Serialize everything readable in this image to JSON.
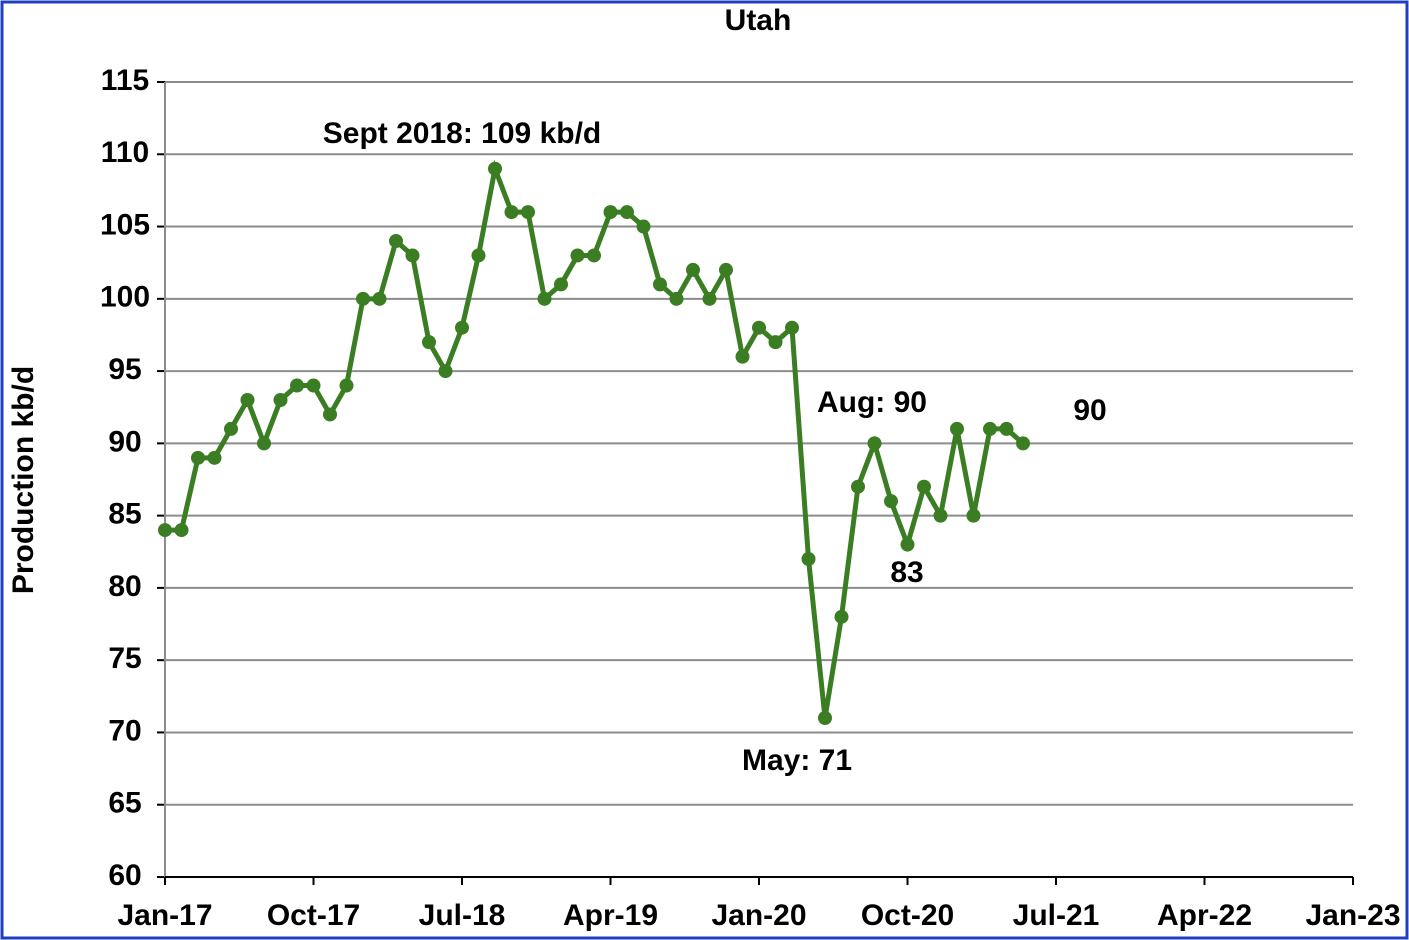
{
  "chart_data": {
    "type": "line",
    "title": "Utah",
    "y_label": "Production kb/d",
    "x": [
      "2017-01",
      "2017-02",
      "2017-03",
      "2017-04",
      "2017-05",
      "2017-06",
      "2017-07",
      "2017-08",
      "2017-09",
      "2017-10",
      "2017-11",
      "2017-12",
      "2018-01",
      "2018-02",
      "2018-03",
      "2018-04",
      "2018-05",
      "2018-06",
      "2018-07",
      "2018-08",
      "2018-09",
      "2018-10",
      "2018-11",
      "2018-12",
      "2019-01",
      "2019-02",
      "2019-03",
      "2019-04",
      "2019-05",
      "2019-06",
      "2019-07",
      "2019-08",
      "2019-09",
      "2019-10",
      "2019-11",
      "2019-12",
      "2020-01",
      "2020-02",
      "2020-03",
      "2020-04",
      "2020-05",
      "2020-06",
      "2020-07",
      "2020-08",
      "2020-09",
      "2020-10",
      "2020-11",
      "2020-12",
      "2021-01",
      "2021-02",
      "2021-03",
      "2021-04",
      "2021-05"
    ],
    "series": [
      {
        "name": "Utah",
        "color": "#3b7d23",
        "values": [
          84,
          84,
          89,
          89,
          91,
          93,
          90,
          93,
          94,
          94,
          92,
          94,
          100,
          100,
          104,
          103,
          97,
          95,
          98,
          103,
          109,
          106,
          106,
          100,
          101,
          103,
          103,
          106,
          106,
          105,
          101,
          100,
          102,
          100,
          102,
          96,
          98,
          97,
          98,
          82,
          71,
          78,
          87,
          90,
          86,
          83,
          87,
          85,
          91,
          85,
          91,
          91,
          90
        ]
      }
    ],
    "xlim": [
      "2017-01",
      "2023-01"
    ],
    "xticks": [
      {
        "value": "2017-01",
        "label": "Jan-17"
      },
      {
        "value": "2017-10",
        "label": "Oct-17"
      },
      {
        "value": "2018-07",
        "label": "Jul-18"
      },
      {
        "value": "2019-04",
        "label": "Apr-19"
      },
      {
        "value": "2020-01",
        "label": "Jan-20"
      },
      {
        "value": "2020-10",
        "label": "Oct-20"
      },
      {
        "value": "2021-07",
        "label": "Jul-21"
      },
      {
        "value": "2022-04",
        "label": "Apr-22"
      },
      {
        "value": "2023-01",
        "label": "Jan-23"
      }
    ],
    "ylim": [
      60,
      115
    ],
    "yticks": [
      60,
      65,
      70,
      75,
      80,
      85,
      90,
      95,
      100,
      105,
      110,
      115
    ],
    "grid": true,
    "annotations": [
      "Sept 2018: 109 kb/d",
      "Aug: 90",
      "90",
      "83",
      "May: 71"
    ]
  }
}
